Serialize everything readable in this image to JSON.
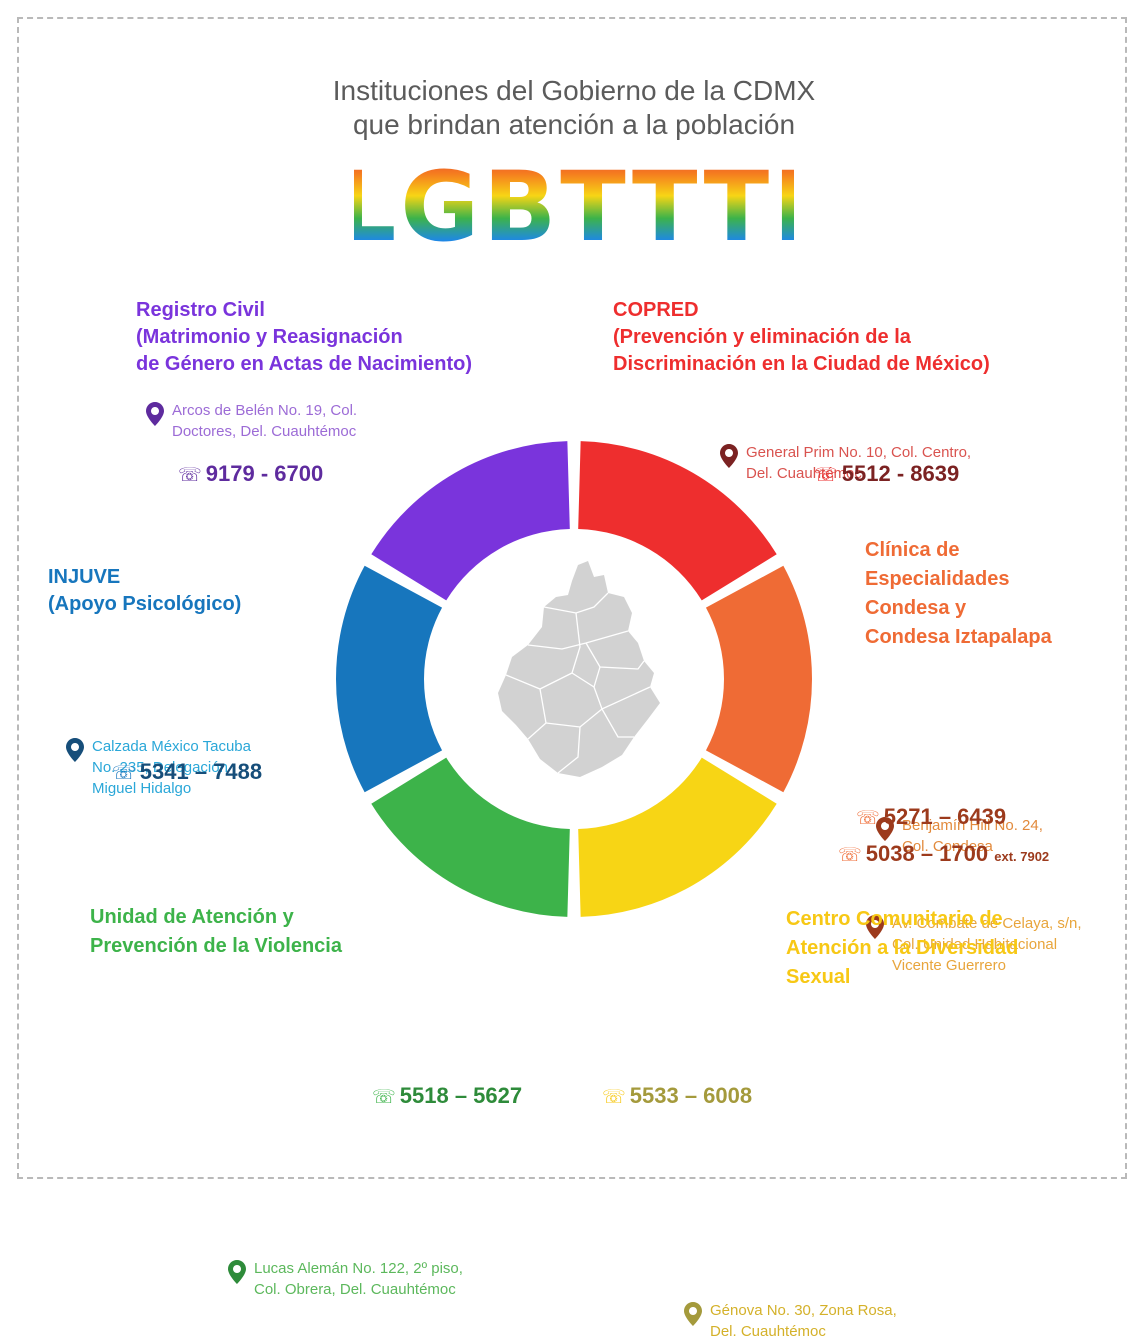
{
  "title": {
    "line1": "Instituciones del Gobierno de la CDMX",
    "line2": "que brindan atención a la población",
    "acronym": "LGBTTTI"
  },
  "colors": {
    "purple": "#7a34dc",
    "red": "#ee2e2e",
    "orange": "#ef6b35",
    "yellow": "#f7d515",
    "green": "#3db34a",
    "blue": "#1776bd",
    "map": "#d2d2d2"
  },
  "icons": [
    "map-pin-icon",
    "phone-icon",
    "cdmx-map-icon"
  ],
  "institutions": {
    "registro_civil": {
      "name": "Registro Civil",
      "desc1": "(Matrimonio y Reasignación",
      "desc2": "de Género en Actas de Nacimiento)",
      "address1": "Arcos de Belén No. 19, Col.",
      "address2": "Doctores, Del. Cuauhtémoc",
      "phone": "9179 - 6700"
    },
    "copred": {
      "name": "COPRED",
      "desc1": "(Prevención y eliminación de la",
      "desc2": "Discriminación en la Ciudad de México)",
      "address1": "General Prim No. 10, Col. Centro,",
      "address2": "Del. Cuauhtémoc",
      "phone": "5512 - 8639"
    },
    "injuve": {
      "name": "INJUVE",
      "desc1": "(Apoyo Psicológico)",
      "address1": "Calzada México Tacuba",
      "address2": "No. 235,  Delegación",
      "address3": "Miguel Hidalgo",
      "phone": "5341 – 7488"
    },
    "clinica": {
      "name1": "Clínica de",
      "name2": "Especialidades",
      "name3": "Condesa y",
      "name4": "Condesa Iztapalapa",
      "address_a1": "Benjamín Hill No. 24,",
      "address_a2": "Col. Condesa",
      "address_b1": "Av. Combate de Celaya, s/n,",
      "address_b2": "Col. Unidad Habitacional",
      "address_b3": "Vicente Guerrero",
      "phone1": "5271 – 6439",
      "phone2": "5038 – 1700",
      "phone2_ext": "ext. 7902"
    },
    "unidad": {
      "name1": "Unidad de Atención y",
      "name2": "Prevención de la Violencia",
      "address1": "Lucas Alemán No. 122, 2º piso,",
      "address2": "Col. Obrera, Del. Cuauhtémoc",
      "phone": "5518 – 5627"
    },
    "centro": {
      "name1": "Centro Comunitario de",
      "name2": "Atención a la Diversidad",
      "name3": "Sexual",
      "address1": "Génova No. 30, Zona Rosa,",
      "address2": "Del. Cuauhtémoc",
      "phone": "5533 – 6008"
    }
  }
}
